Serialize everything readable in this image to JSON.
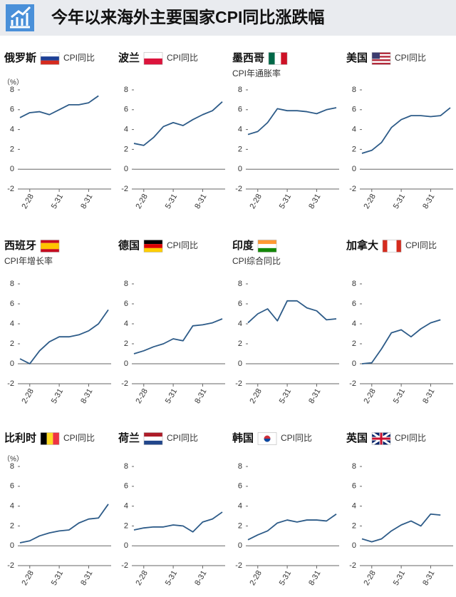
{
  "title": "今年以来海外主要国家CPI同比涨跌幅",
  "chart_data": [
    {
      "type": "line",
      "title": "俄罗斯",
      "subtitle": "CPI同比",
      "unit": "（%）",
      "categories": [
        null,
        "2-28",
        null,
        null,
        "5-31",
        null,
        null,
        "8-31",
        null,
        null
      ],
      "values": [
        5.2,
        5.7,
        5.8,
        5.5,
        6.0,
        6.5,
        6.5,
        6.7,
        7.4,
        null
      ],
      "color": "#2d5b88",
      "ylim": [
        -2,
        8
      ],
      "yticks": [
        -2,
        0,
        2,
        4,
        6,
        8
      ]
    },
    {
      "type": "line",
      "title": "波兰",
      "subtitle": "CPI同比",
      "categories": [
        null,
        "2-28",
        null,
        null,
        "5-31",
        null,
        null,
        "8-31",
        null,
        null
      ],
      "values": [
        2.6,
        2.4,
        3.2,
        4.3,
        4.7,
        4.4,
        5.0,
        5.5,
        5.9,
        6.8
      ],
      "color": "#2d5b88",
      "ylim": [
        -2,
        8
      ],
      "yticks": [
        -2,
        0,
        2,
        4,
        6,
        8
      ]
    },
    {
      "type": "line",
      "title": "墨西哥",
      "subtitle": "CPI年通胀率",
      "categories": [
        null,
        "2-28",
        null,
        null,
        "5-31",
        null,
        null,
        "8-31",
        null,
        null
      ],
      "values": [
        3.5,
        3.8,
        4.7,
        6.1,
        5.9,
        5.9,
        5.8,
        5.6,
        6.0,
        6.2
      ],
      "color": "#2d5b88",
      "ylim": [
        -2,
        8
      ],
      "yticks": [
        -2,
        0,
        2,
        4,
        6,
        8
      ]
    },
    {
      "type": "line",
      "title": "美国",
      "subtitle": "CPI同比",
      "categories": [
        null,
        "2-28",
        null,
        null,
        "5-31",
        null,
        null,
        "8-31",
        null,
        null
      ],
      "values": [
        1.6,
        1.9,
        2.7,
        4.2,
        5.0,
        5.4,
        5.4,
        5.3,
        5.4,
        6.2
      ],
      "color": "#2d5b88",
      "ylim": [
        -2,
        8
      ],
      "yticks": [
        -2,
        0,
        2,
        4,
        6,
        8
      ]
    },
    {
      "type": "line",
      "title": "西班牙",
      "subtitle": "CPI年增长率",
      "categories": [
        null,
        "2-28",
        null,
        null,
        "5-31",
        null,
        null,
        "8-31",
        null,
        null
      ],
      "values": [
        0.5,
        0.0,
        1.3,
        2.2,
        2.7,
        2.7,
        2.9,
        3.3,
        4.0,
        5.4
      ],
      "color": "#2d5b88",
      "ylim": [
        -2,
        8
      ],
      "yticks": [
        -2,
        0,
        2,
        4,
        6,
        8
      ]
    },
    {
      "type": "line",
      "title": "德国",
      "subtitle": "CPI同比",
      "categories": [
        null,
        "2-28",
        null,
        null,
        "5-31",
        null,
        null,
        "8-31",
        null,
        null
      ],
      "values": [
        1.0,
        1.3,
        1.7,
        2.0,
        2.5,
        2.3,
        3.8,
        3.9,
        4.1,
        4.5
      ],
      "color": "#2d5b88",
      "ylim": [
        -2,
        8
      ],
      "yticks": [
        -2,
        0,
        2,
        4,
        6,
        8
      ]
    },
    {
      "type": "line",
      "title": "印度",
      "subtitle": "CPI综合同比",
      "categories": [
        null,
        "2-28",
        null,
        null,
        "5-31",
        null,
        null,
        "8-31",
        null,
        null
      ],
      "values": [
        4.1,
        5.0,
        5.5,
        4.3,
        6.3,
        6.3,
        5.6,
        5.3,
        4.4,
        4.5
      ],
      "color": "#2d5b88",
      "ylim": [
        -2,
        8
      ],
      "yticks": [
        -2,
        0,
        2,
        4,
        6,
        8
      ]
    },
    {
      "type": "line",
      "title": "加拿大",
      "subtitle": "CPI同比",
      "categories": [
        null,
        "2-28",
        null,
        null,
        "5-31",
        null,
        null,
        "8-31",
        null,
        null
      ],
      "values": [
        0.0,
        0.1,
        1.5,
        3.1,
        3.4,
        2.7,
        3.5,
        4.1,
        4.4,
        null
      ],
      "color": "#2d5b88",
      "ylim": [
        -2,
        8
      ],
      "yticks": [
        -2,
        0,
        2,
        4,
        6,
        8
      ]
    },
    {
      "type": "line",
      "title": "比利时",
      "subtitle": "CPI同比",
      "unit": "（%）",
      "categories": [
        null,
        "2-28",
        null,
        null,
        "5-31",
        null,
        null,
        "8-31",
        null,
        null
      ],
      "values": [
        0.3,
        0.5,
        1.0,
        1.3,
        1.5,
        1.6,
        2.3,
        2.7,
        2.8,
        4.2
      ],
      "color": "#2d5b88",
      "ylim": [
        -2,
        8
      ],
      "yticks": [
        -2,
        0,
        2,
        4,
        6,
        8
      ]
    },
    {
      "type": "line",
      "title": "荷兰",
      "subtitle": "CPI同比",
      "categories": [
        null,
        "2-28",
        null,
        null,
        "5-31",
        null,
        null,
        "8-31",
        null,
        null
      ],
      "values": [
        1.6,
        1.8,
        1.9,
        1.9,
        2.1,
        2.0,
        1.4,
        2.4,
        2.7,
        3.4
      ],
      "color": "#2d5b88",
      "ylim": [
        -2,
        8
      ],
      "yticks": [
        -2,
        0,
        2,
        4,
        6,
        8
      ]
    },
    {
      "type": "line",
      "title": "韩国",
      "subtitle": "CPI同比",
      "categories": [
        null,
        "2-28",
        null,
        null,
        "5-31",
        null,
        null,
        "8-31",
        null,
        null
      ],
      "values": [
        0.6,
        1.1,
        1.5,
        2.3,
        2.6,
        2.4,
        2.6,
        2.6,
        2.5,
        3.2
      ],
      "color": "#2d5b88",
      "ylim": [
        -2,
        8
      ],
      "yticks": [
        -2,
        0,
        2,
        4,
        6,
        8
      ]
    },
    {
      "type": "line",
      "title": "英国",
      "subtitle": "CPI同比",
      "categories": [
        null,
        "2-28",
        null,
        null,
        "5-31",
        null,
        null,
        "8-31",
        null,
        null
      ],
      "values": [
        0.7,
        0.4,
        0.7,
        1.5,
        2.1,
        2.5,
        2.0,
        3.2,
        3.1,
        null
      ],
      "color": "#2d5b88",
      "ylim": [
        -2,
        8
      ],
      "yticks": [
        -2,
        0,
        2,
        4,
        6,
        8
      ]
    }
  ]
}
